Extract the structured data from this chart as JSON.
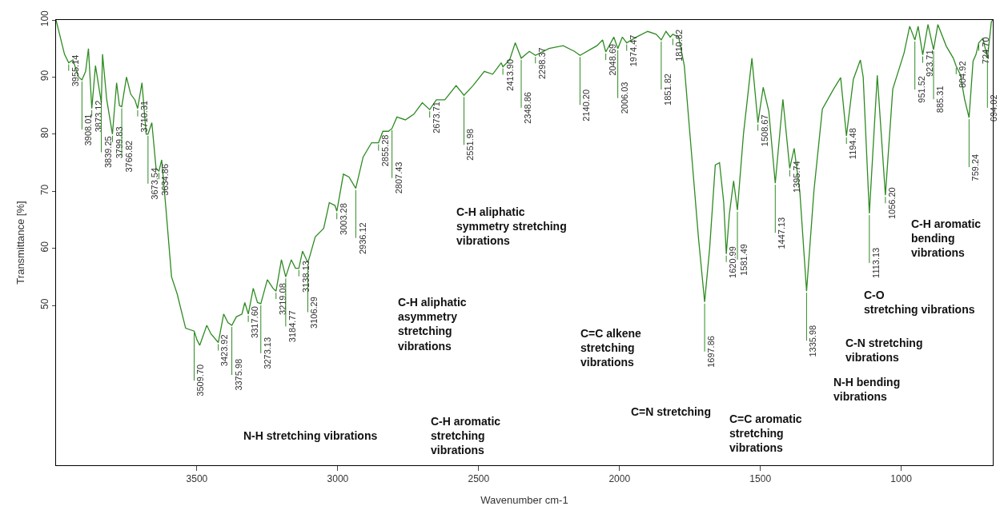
{
  "chart_data": {
    "type": "line",
    "xlabel": "Wavenumber cm-1",
    "ylabel": "Transmittance [%]",
    "xlim": [
      4000,
      675
    ],
    "ylim": [
      22,
      100
    ],
    "xticks": [
      3500,
      3000,
      2500,
      2000,
      1500,
      1000
    ],
    "yticks": [
      50,
      60,
      70,
      80,
      90,
      100
    ],
    "line_style": "solid",
    "series": [
      {
        "color": "#2e8b22",
        "x": [
          4000,
          3970,
          3955.14,
          3940,
          3920,
          3908.01,
          3895,
          3885,
          3873.12,
          3860,
          3839.25,
          3835,
          3820,
          3799.83,
          3785,
          3775,
          3766.82,
          3750,
          3735,
          3720,
          3710.31,
          3695,
          3680,
          3673.54,
          3660,
          3645,
          3634.86,
          3625,
          3610,
          3590,
          3570,
          3540,
          3509.7,
          3500,
          3490,
          3465,
          3450,
          3423.92,
          3405,
          3390,
          3375.98,
          3360,
          3340,
          3330,
          3317.6,
          3300,
          3285,
          3273.13,
          3250,
          3230,
          3219.08,
          3200,
          3184.77,
          3165,
          3150,
          3138.13,
          3125,
          3106.29,
          3100,
          3080,
          3050,
          3030,
          3010,
          3003.28,
          2980,
          2960,
          2936.12,
          2910,
          2880,
          2855.28,
          2840,
          2820,
          2807.43,
          2790,
          2760,
          2730,
          2700,
          2673.71,
          2650,
          2620,
          2580,
          2551.98,
          2520,
          2480,
          2450,
          2420,
          2413.9,
          2390,
          2370,
          2348.86,
          2320,
          2298.37,
          2250,
          2200,
          2160,
          2140.2,
          2080,
          2060,
          2048.69,
          2020,
          2006.03,
          1990,
          1974.47,
          1940,
          1900,
          1870,
          1851.82,
          1835,
          1820,
          1810.82,
          1790,
          1770,
          1750,
          1720,
          1697.86,
          1680,
          1660,
          1645,
          1630,
          1620.99,
          1610,
          1595,
          1581.49,
          1560,
          1530,
          1508.67,
          1490,
          1470,
          1447.13,
          1420,
          1395.74,
          1380,
          1360,
          1335.98,
          1310,
          1280,
          1240,
          1215,
          1194.48,
          1170,
          1145,
          1135,
          1113.13,
          1085,
          1056.2,
          1030,
          990,
          970,
          951.52,
          940,
          923.71,
          905,
          885.31,
          870,
          840,
          815,
          804.92,
          790,
          775,
          759.24,
          745,
          735,
          724.7,
          710,
          694.02,
          680,
          675
        ],
        "values": [
          100,
          94,
          92.5,
          93,
          90,
          89.5,
          91,
          95,
          84.5,
          92,
          85.5,
          94,
          86,
          80,
          89,
          85,
          84.8,
          90,
          87,
          86,
          84.5,
          89,
          80,
          80,
          82,
          74,
          73.5,
          75.5,
          67,
          55,
          52,
          46,
          45.5,
          44,
          43,
          46.5,
          45,
          43.5,
          48.5,
          47,
          46.5,
          48,
          48.5,
          50.5,
          48.5,
          53,
          50.5,
          50.3,
          54.5,
          53,
          52.5,
          58,
          55,
          58,
          56.5,
          56.5,
          59.5,
          57.5,
          58.5,
          62,
          63.5,
          68,
          67.5,
          66.5,
          73,
          72.5,
          70.5,
          76,
          78.5,
          78.5,
          80.5,
          80.5,
          81,
          83,
          82.5,
          83.5,
          85.5,
          84.3,
          86,
          86,
          88.5,
          86.8,
          88.5,
          91,
          90.5,
          92.5,
          91.8,
          93,
          96,
          93.3,
          94.5,
          93.8,
          95,
          95.5,
          94.5,
          93.8,
          95.5,
          96.5,
          94.4,
          97,
          95,
          97,
          96,
          97,
          98,
          97.5,
          96.5,
          98,
          97,
          97.5,
          97,
          92,
          80,
          62,
          50.6,
          60,
          74.6,
          75,
          68,
          59,
          66,
          71.8,
          66.7,
          80,
          93.3,
          82,
          88.2,
          84,
          71.4,
          86.1,
          74,
          77.5,
          70,
          52.5,
          70,
          84.4,
          87.9,
          89.9,
          79.7,
          89.6,
          93,
          90,
          66.1,
          90.3,
          69.3,
          87.9,
          94.2,
          98.9,
          96.5,
          98.9,
          93.9,
          99.2,
          94.8,
          99.2,
          95.4,
          93.3,
          91.9,
          90.4,
          86.1,
          82.9,
          92.8,
          93.9,
          96,
          96.8,
          93.3,
          99.7,
          100
        ]
      }
    ],
    "annotations": [
      {
        "text": "3955.14",
        "x": 3955.14,
        "y": 92.5
      },
      {
        "text": "3908.01",
        "x": 3908.01,
        "y": 89.5
      },
      {
        "text": "3873.12",
        "x": 3873.12,
        "y": 84.5
      },
      {
        "text": "3839.25",
        "x": 3839.25,
        "y": 85.5
      },
      {
        "text": "3799.83",
        "x": 3799.83,
        "y": 80
      },
      {
        "text": "3766.82",
        "x": 3766.82,
        "y": 84.8
      },
      {
        "text": "3710.31",
        "x": 3710.31,
        "y": 84.5
      },
      {
        "text": "3673.54",
        "x": 3673.54,
        "y": 80
      },
      {
        "text": "3634.86",
        "x": 3634.86,
        "y": 73.5
      },
      {
        "text": "3509.70",
        "x": 3509.7,
        "y": 45.5
      },
      {
        "text": "3423.92",
        "x": 3423.92,
        "y": 43.5
      },
      {
        "text": "3375.98",
        "x": 3375.98,
        "y": 46.5
      },
      {
        "text": "3317.60",
        "x": 3317.6,
        "y": 48.5
      },
      {
        "text": "3273.13",
        "x": 3273.13,
        "y": 50.3
      },
      {
        "text": "3219.08",
        "x": 3219.08,
        "y": 52.5
      },
      {
        "text": "3184.77",
        "x": 3184.77,
        "y": 55
      },
      {
        "text": "3138.13",
        "x": 3138.13,
        "y": 56.5
      },
      {
        "text": "3106.29",
        "x": 3106.29,
        "y": 57.5
      },
      {
        "text": "3003.28",
        "x": 3003.28,
        "y": 66.5
      },
      {
        "text": "2936.12",
        "x": 2936.12,
        "y": 70.5
      },
      {
        "text": "2855.28",
        "x": 2855.28,
        "y": 78.5
      },
      {
        "text": "2807.43",
        "x": 2807.43,
        "y": 81
      },
      {
        "text": "2673.71",
        "x": 2673.71,
        "y": 84.3
      },
      {
        "text": "2551.98",
        "x": 2551.98,
        "y": 86.8
      },
      {
        "text": "2413.90",
        "x": 2413.9,
        "y": 91.8
      },
      {
        "text": "2348.86",
        "x": 2348.86,
        "y": 93.3
      },
      {
        "text": "2298.37",
        "x": 2298.37,
        "y": 93.8
      },
      {
        "text": "2140.20",
        "x": 2140.2,
        "y": 93.8
      },
      {
        "text": "2048.69",
        "x": 2048.69,
        "y": 94.4
      },
      {
        "text": "2006.03",
        "x": 2006.03,
        "y": 95
      },
      {
        "text": "1974.47",
        "x": 1974.47,
        "y": 96
      },
      {
        "text": "1851.82",
        "x": 1851.82,
        "y": 96.5
      },
      {
        "text": "1810.82",
        "x": 1810.82,
        "y": 97
      },
      {
        "text": "1697.86",
        "x": 1697.86,
        "y": 50.6
      },
      {
        "text": "1620.99",
        "x": 1620.99,
        "y": 59
      },
      {
        "text": "1581.49",
        "x": 1581.49,
        "y": 66.7
      },
      {
        "text": "1508.67",
        "x": 1508.67,
        "y": 82
      },
      {
        "text": "1447.13",
        "x": 1447.13,
        "y": 71.4
      },
      {
        "text": "1395.74",
        "x": 1395.74,
        "y": 74
      },
      {
        "text": "1335.98",
        "x": 1335.98,
        "y": 52.5
      },
      {
        "text": "1194.48",
        "x": 1194.48,
        "y": 79.7
      },
      {
        "text": "1113.13",
        "x": 1113.13,
        "y": 66.1
      },
      {
        "text": "1056.20",
        "x": 1056.2,
        "y": 69.3
      },
      {
        "text": "951.52",
        "x": 951.52,
        "y": 96.5
      },
      {
        "text": "923.71",
        "x": 923.71,
        "y": 93.9
      },
      {
        "text": "885.31",
        "x": 885.31,
        "y": 94.8
      },
      {
        "text": "804.92",
        "x": 804.92,
        "y": 91.9
      },
      {
        "text": "759.24",
        "x": 759.24,
        "y": 82.9
      },
      {
        "text": "724.70",
        "x": 724.7,
        "y": 96
      },
      {
        "text": "694.02",
        "x": 694.02,
        "y": 93.3
      },
      "N-H stretching vibrations",
      "C-H aromatic\nstretching\nvibrations",
      "C-H aliphatic\nasymmetry\nstretching\nvibrations",
      "C-H aliphatic\nsymmetry stretching\nvibrations",
      "C=C alkene\nstretching\nvibrations",
      "C=N stretching",
      "C=C aromatic\nstretching\nvibrations",
      "N-H bending\nvibrations",
      "C-N stretching\nvibrations",
      "C-O\nstretching vibrations",
      "C-H aromatic\nbending\nvibrations"
    ]
  }
}
